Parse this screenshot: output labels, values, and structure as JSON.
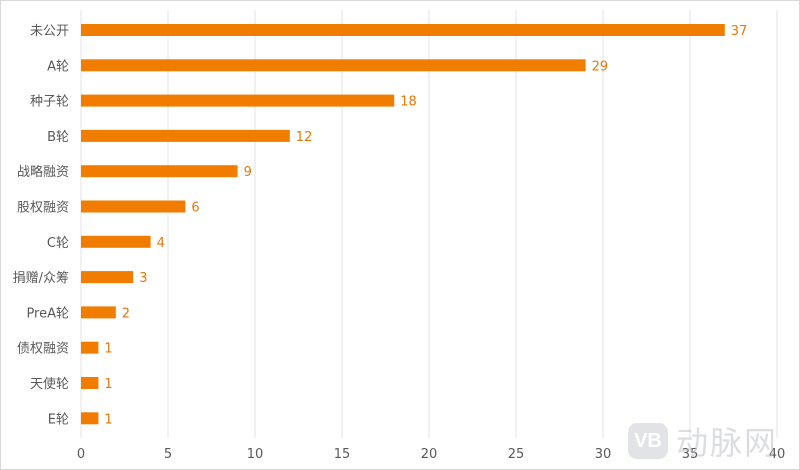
{
  "chart_data": {
    "type": "bar",
    "orientation": "horizontal",
    "categories": [
      "未公开",
      "A轮",
      "种子轮",
      "B轮",
      "战略融资",
      "股权融资",
      "C轮",
      "捐赠/众筹",
      "PreA轮",
      "债权融资",
      "天使轮",
      "E轮"
    ],
    "values": [
      37,
      29,
      18,
      12,
      9,
      6,
      4,
      3,
      2,
      1,
      1,
      1
    ],
    "xlim": [
      0,
      40
    ],
    "xticks": [
      0,
      5,
      10,
      15,
      20,
      25,
      30,
      35,
      40
    ],
    "grid": true,
    "bar_color": "#f07d00",
    "label_color": "#e8780a",
    "title": "",
    "xlabel": "",
    "ylabel": ""
  },
  "watermark": {
    "logo_text": "VB",
    "text": "动脉网"
  }
}
